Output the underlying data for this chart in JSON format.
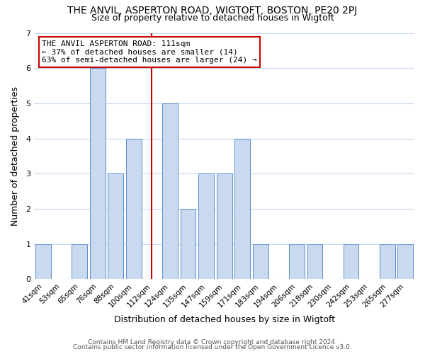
{
  "title": "THE ANVIL, ASPERTON ROAD, WIGTOFT, BOSTON, PE20 2PJ",
  "subtitle": "Size of property relative to detached houses in Wigtoft",
  "xlabel": "Distribution of detached houses by size in Wigtoft",
  "ylabel": "Number of detached properties",
  "bar_labels": [
    "41sqm",
    "53sqm",
    "65sqm",
    "76sqm",
    "88sqm",
    "100sqm",
    "112sqm",
    "124sqm",
    "135sqm",
    "147sqm",
    "159sqm",
    "171sqm",
    "183sqm",
    "194sqm",
    "206sqm",
    "218sqm",
    "230sqm",
    "242sqm",
    "253sqm",
    "265sqm",
    "277sqm"
  ],
  "bar_heights": [
    1,
    0,
    1,
    6,
    3,
    4,
    0,
    5,
    2,
    3,
    3,
    4,
    1,
    0,
    1,
    1,
    0,
    1,
    0,
    1,
    1
  ],
  "bar_color": "#c9d9f0",
  "bar_edge_color": "#5b8fc9",
  "reference_line_index": 6,
  "reference_line_color": "#cc0000",
  "ylim": [
    0,
    7
  ],
  "yticks": [
    0,
    1,
    2,
    3,
    4,
    5,
    6,
    7
  ],
  "annotation_title": "THE ANVIL ASPERTON ROAD: 111sqm",
  "annotation_line1": "← 37% of detached houses are smaller (14)",
  "annotation_line2": "63% of semi-detached houses are larger (24) →",
  "annotation_box_color": "#ffffff",
  "annotation_box_edge": "#cc0000",
  "footer_line1": "Contains HM Land Registry data © Crown copyright and database right 2024.",
  "footer_line2": "Contains public sector information licensed under the Open Government Licence v3.0.",
  "background_color": "#ffffff",
  "grid_color": "#c5d8ee"
}
